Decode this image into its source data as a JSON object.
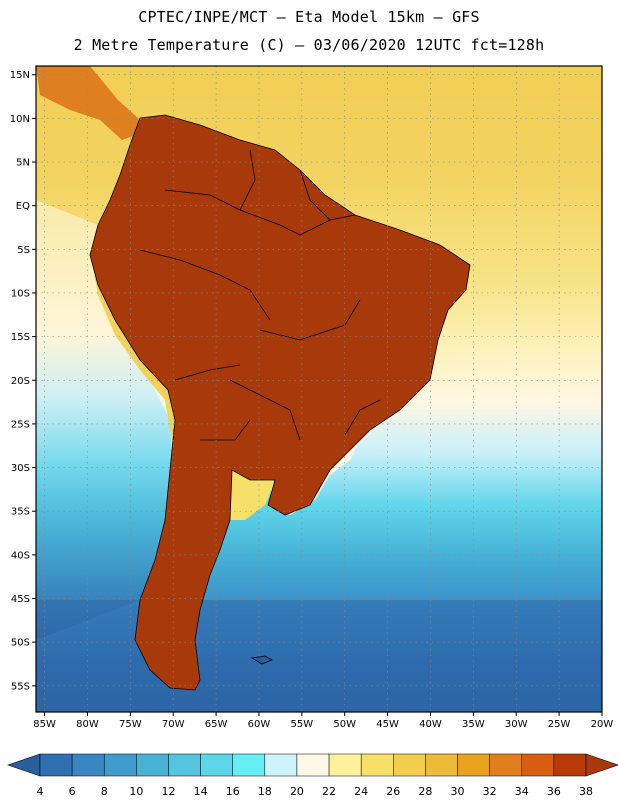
{
  "header": {
    "line1": "CPTEC/INPE/MCT –  Eta Model 15km – GFS",
    "line2": "2 Metre Temperature (C) – 03/06/2020 12UTC fct=128h"
  },
  "axes": {
    "lat_labels": [
      "15N",
      "10N",
      "5N",
      "EQ",
      "5S",
      "10S",
      "15S",
      "20S",
      "25S",
      "30S",
      "35S",
      "40S",
      "45S",
      "50S",
      "55S"
    ],
    "lon_labels": [
      "85W",
      "80W",
      "75W",
      "70W",
      "65W",
      "60W",
      "55W",
      "50W",
      "45W",
      "40W",
      "35W",
      "30W",
      "25W",
      "20W"
    ],
    "lat_range": [
      -58,
      16
    ],
    "lon_range": [
      -86,
      -20
    ]
  },
  "colorbar": {
    "labels": [
      "4",
      "6",
      "8",
      "10",
      "12",
      "14",
      "16",
      "18",
      "20",
      "22",
      "24",
      "26",
      "28",
      "30",
      "32",
      "34",
      "36",
      "38"
    ],
    "colors": [
      "#2f6fb0",
      "#3a86c0",
      "#3f9ccc",
      "#47b1d6",
      "#55c4e0",
      "#5cd6e8",
      "#66eef5",
      "#cdf3fb",
      "#fff8e6",
      "#fdf29b",
      "#f7e06a",
      "#f2cd4e",
      "#ecbb3a",
      "#e8a21e",
      "#e07f1e",
      "#d65d12",
      "#b83a06"
    ]
  },
  "colors": {
    "ocean_north": "#f2cf55",
    "land_hot": "#a8390b",
    "ocean_south": "#2b5f9e",
    "boundary": "#000000"
  }
}
